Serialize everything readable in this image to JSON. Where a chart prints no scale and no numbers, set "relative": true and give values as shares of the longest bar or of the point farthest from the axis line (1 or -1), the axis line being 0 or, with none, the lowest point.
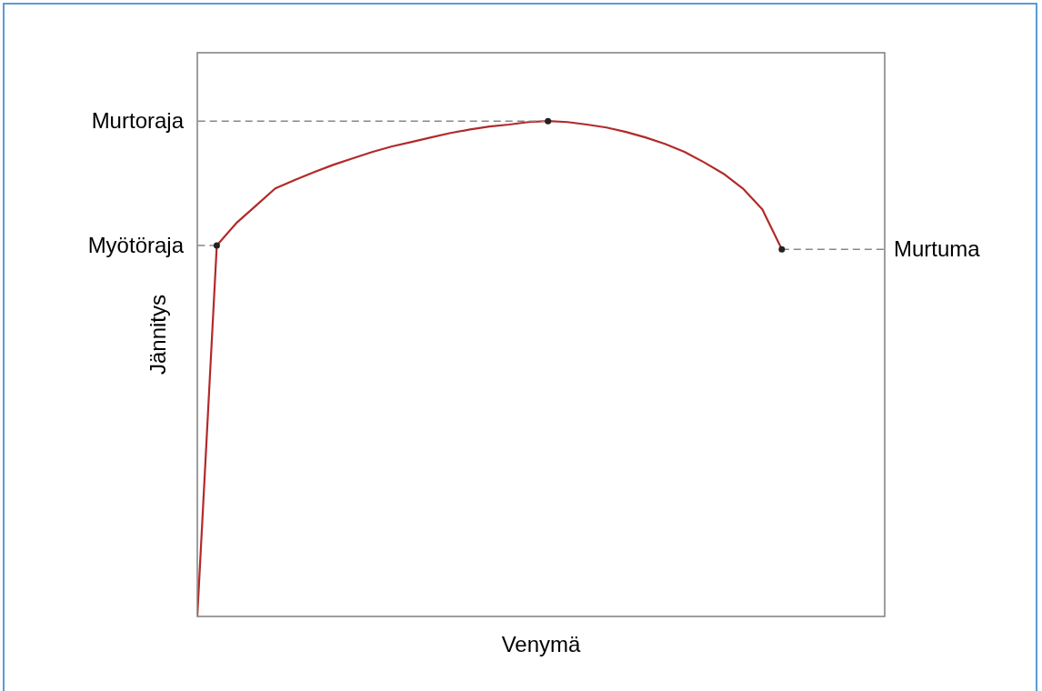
{
  "chart_data": {
    "type": "line",
    "relative": true,
    "xlabel": "Venymä",
    "ylabel": "Jännitys",
    "marker": "none",
    "line_style": "solid",
    "legend": false,
    "categories": [
      null,
      null,
      null,
      null,
      null,
      null,
      null,
      null,
      null,
      null,
      null,
      null,
      null,
      null,
      null,
      null,
      null,
      null,
      null,
      null,
      null,
      null,
      null,
      null,
      null,
      null,
      null,
      null,
      null,
      null,
      null
    ],
    "series": [
      {
        "color": "#b22a2a",
        "values": [
          0,
          0.749,
          0.794,
          0.829,
          0.864,
          0.881,
          0.897,
          0.912,
          0.925,
          0.938,
          0.949,
          0.958,
          0.967,
          0.976,
          0.983,
          0.989,
          0.993,
          0.998,
          1,
          0.998,
          0.993,
          0.987,
          0.978,
          0.967,
          0.954,
          0.938,
          0.917,
          0.894,
          0.864,
          0.822,
          0.741
        ]
      }
    ],
    "ref_lines": [
      {
        "axis": "y",
        "value": 1,
        "label": "Murtoraja",
        "color": "#888888",
        "line_style": "dashed"
      },
      {
        "axis": "y",
        "value": 0.749,
        "label": "Myötöraja",
        "color": "#888888",
        "line_style": "dashed"
      },
      {
        "axis": "y",
        "value": 0.741,
        "label": "Murtuma",
        "color": "#888888",
        "line_style": "dashed"
      }
    ]
  }
}
